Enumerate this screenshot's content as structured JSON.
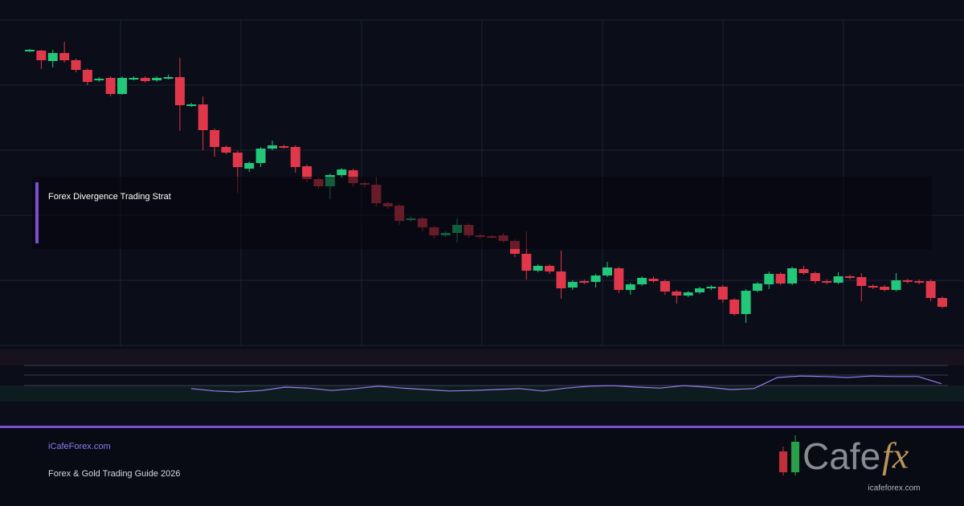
{
  "chart_data": {
    "type": "candlestick",
    "up_color": "#22c77a",
    "down_color": "#e0384a",
    "grid": true,
    "ylim": [
      0,
      405
    ],
    "candles": [
      {
        "o": 366,
        "h": 369,
        "l": 365,
        "c": 368
      },
      {
        "o": 367,
        "h": 368,
        "l": 344,
        "c": 355
      },
      {
        "o": 354,
        "h": 368,
        "l": 346,
        "c": 364
      },
      {
        "o": 364,
        "h": 378,
        "l": 352,
        "c": 355
      },
      {
        "o": 355,
        "h": 357,
        "l": 340,
        "c": 343
      },
      {
        "o": 343,
        "h": 345,
        "l": 324,
        "c": 328
      },
      {
        "o": 330,
        "h": 334,
        "l": 328,
        "c": 332
      },
      {
        "o": 333,
        "h": 335,
        "l": 310,
        "c": 313
      },
      {
        "o": 313,
        "h": 335,
        "l": 312,
        "c": 333
      },
      {
        "o": 332,
        "h": 335,
        "l": 330,
        "c": 333
      },
      {
        "o": 333,
        "h": 335,
        "l": 327,
        "c": 329
      },
      {
        "o": 330,
        "h": 335,
        "l": 328,
        "c": 333
      },
      {
        "o": 333,
        "h": 337,
        "l": 331,
        "c": 334
      },
      {
        "o": 334,
        "h": 358,
        "l": 267,
        "c": 299
      },
      {
        "o": 299,
        "h": 302,
        "l": 297,
        "c": 300
      },
      {
        "o": 300,
        "h": 310,
        "l": 243,
        "c": 268
      },
      {
        "o": 268,
        "h": 270,
        "l": 235,
        "c": 247
      },
      {
        "o": 247,
        "h": 249,
        "l": 238,
        "c": 240
      },
      {
        "o": 240,
        "h": 242,
        "l": 190,
        "c": 222
      },
      {
        "o": 220,
        "h": 229,
        "l": 216,
        "c": 227
      },
      {
        "o": 227,
        "h": 247,
        "l": 222,
        "c": 245
      },
      {
        "o": 245,
        "h": 255,
        "l": 243,
        "c": 249
      },
      {
        "o": 248,
        "h": 250,
        "l": 245,
        "c": 247
      },
      {
        "o": 247,
        "h": 249,
        "l": 215,
        "c": 222
      },
      {
        "o": 223,
        "h": 225,
        "l": 203,
        "c": 207
      },
      {
        "o": 207,
        "h": 209,
        "l": 195,
        "c": 198
      },
      {
        "o": 198,
        "h": 214,
        "l": 182,
        "c": 212
      },
      {
        "o": 212,
        "h": 221,
        "l": 208,
        "c": 219
      },
      {
        "o": 218,
        "h": 220,
        "l": 198,
        "c": 202
      },
      {
        "o": 202,
        "h": 204,
        "l": 197,
        "c": 200
      },
      {
        "o": 200,
        "h": 210,
        "l": 173,
        "c": 177
      },
      {
        "o": 177,
        "h": 179,
        "l": 170,
        "c": 173
      },
      {
        "o": 174,
        "h": 176,
        "l": 150,
        "c": 155
      },
      {
        "o": 156,
        "h": 160,
        "l": 154,
        "c": 158
      },
      {
        "o": 158,
        "h": 160,
        "l": 142,
        "c": 147
      },
      {
        "o": 147,
        "h": 149,
        "l": 133,
        "c": 137
      },
      {
        "o": 137,
        "h": 142,
        "l": 135,
        "c": 140
      },
      {
        "o": 140,
        "h": 158,
        "l": 128,
        "c": 150
      },
      {
        "o": 150,
        "h": 152,
        "l": 134,
        "c": 137
      },
      {
        "o": 137,
        "h": 139,
        "l": 133,
        "c": 135
      },
      {
        "o": 136,
        "h": 138,
        "l": 133,
        "c": 135
      },
      {
        "o": 137,
        "h": 140,
        "l": 128,
        "c": 130
      },
      {
        "o": 130,
        "h": 132,
        "l": 110,
        "c": 114
      },
      {
        "o": 114,
        "h": 142,
        "l": 82,
        "c": 93
      },
      {
        "o": 93,
        "h": 101,
        "l": 91,
        "c": 99
      },
      {
        "o": 99,
        "h": 101,
        "l": 89,
        "c": 92
      },
      {
        "o": 92,
        "h": 118,
        "l": 58,
        "c": 71
      },
      {
        "o": 72,
        "h": 81,
        "l": 69,
        "c": 79
      },
      {
        "o": 80,
        "h": 82,
        "l": 76,
        "c": 78
      },
      {
        "o": 79,
        "h": 89,
        "l": 72,
        "c": 87
      },
      {
        "o": 87,
        "h": 104,
        "l": 85,
        "c": 97
      },
      {
        "o": 96,
        "h": 98,
        "l": 65,
        "c": 69
      },
      {
        "o": 69,
        "h": 78,
        "l": 63,
        "c": 76
      },
      {
        "o": 76,
        "h": 86,
        "l": 74,
        "c": 84
      },
      {
        "o": 83,
        "h": 86,
        "l": 78,
        "c": 80
      },
      {
        "o": 80,
        "h": 82,
        "l": 63,
        "c": 67
      },
      {
        "o": 67,
        "h": 69,
        "l": 52,
        "c": 62
      },
      {
        "o": 62,
        "h": 68,
        "l": 60,
        "c": 66
      },
      {
        "o": 66,
        "h": 73,
        "l": 64,
        "c": 71
      },
      {
        "o": 71,
        "h": 75,
        "l": 69,
        "c": 73
      },
      {
        "o": 73,
        "h": 75,
        "l": 53,
        "c": 57
      },
      {
        "o": 57,
        "h": 59,
        "l": 37,
        "c": 39
      },
      {
        "o": 39,
        "h": 70,
        "l": 28,
        "c": 68
      },
      {
        "o": 68,
        "h": 79,
        "l": 66,
        "c": 77
      },
      {
        "o": 76,
        "h": 92,
        "l": 70,
        "c": 89
      },
      {
        "o": 89,
        "h": 91,
        "l": 75,
        "c": 77
      },
      {
        "o": 77,
        "h": 98,
        "l": 75,
        "c": 96
      },
      {
        "o": 95,
        "h": 99,
        "l": 88,
        "c": 90
      },
      {
        "o": 90,
        "h": 92,
        "l": 77,
        "c": 80
      },
      {
        "o": 80,
        "h": 82,
        "l": 76,
        "c": 78
      },
      {
        "o": 78,
        "h": 91,
        "l": 76,
        "c": 86
      },
      {
        "o": 86,
        "h": 88,
        "l": 82,
        "c": 84
      },
      {
        "o": 85,
        "h": 90,
        "l": 55,
        "c": 74
      },
      {
        "o": 74,
        "h": 76,
        "l": 70,
        "c": 72
      },
      {
        "o": 73,
        "h": 75,
        "l": 67,
        "c": 69
      },
      {
        "o": 69,
        "h": 90,
        "l": 67,
        "c": 81
      },
      {
        "o": 81,
        "h": 83,
        "l": 77,
        "c": 79
      },
      {
        "o": 80,
        "h": 82,
        "l": 76,
        "c": 78
      },
      {
        "o": 80,
        "h": 82,
        "l": 55,
        "c": 59
      },
      {
        "o": 59,
        "h": 61,
        "l": 46,
        "c": 48
      }
    ],
    "indicator": {
      "color": "#9b7cf0",
      "ylim": [
        0,
        100
      ],
      "values": [
        27,
        22,
        20,
        23,
        30,
        28,
        23,
        27,
        32,
        28,
        25,
        22,
        23,
        25,
        27,
        22,
        28,
        32,
        33,
        30,
        28,
        33,
        30,
        25,
        27,
        50,
        53,
        52,
        50,
        53,
        52,
        52,
        37
      ]
    }
  },
  "overlay": {
    "title": "Forex Divergence Trading Strat"
  },
  "footer": {
    "site": "iCafeForex.com",
    "subtitle": "Forex & Gold Trading Guide 2026"
  },
  "logo": {
    "word": "Cafe",
    "accent": "fx",
    "url": "icafeforex.com"
  }
}
